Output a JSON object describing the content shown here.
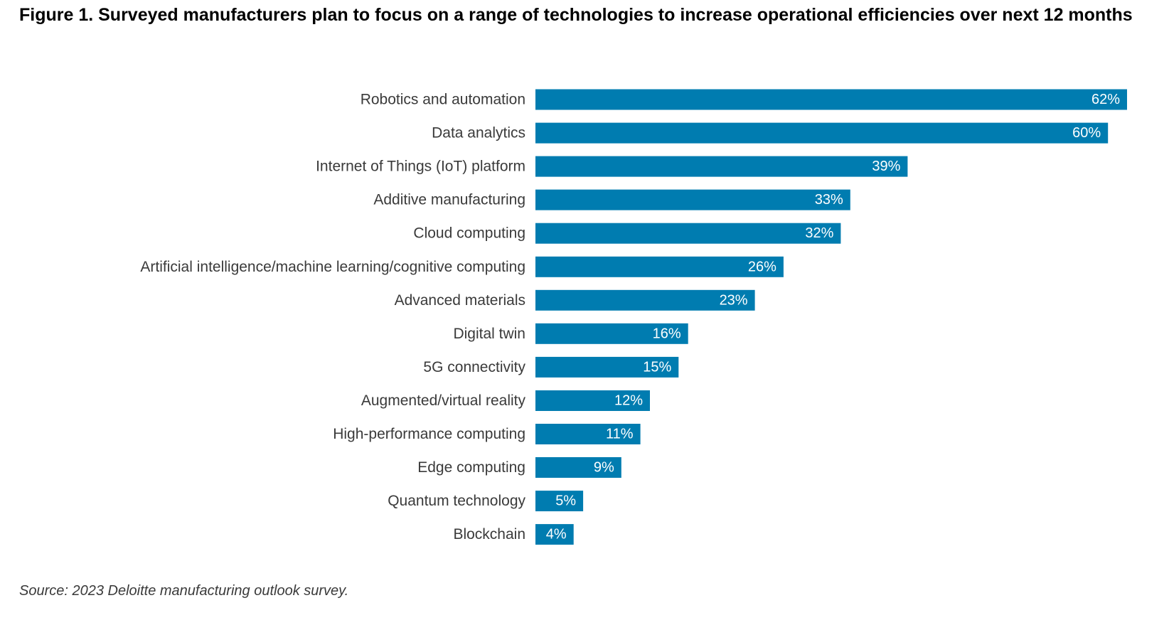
{
  "title": "Figure 1. Surveyed manufacturers plan to focus on a range of technologies to increase operational efficiencies over next 12 months",
  "source": "Source: 2023 Deloitte manufacturing outlook survey.",
  "colors": {
    "bar": "#007cb0",
    "label_text": "#3a3a3a",
    "value_text": "#ffffff"
  },
  "chart_data": {
    "type": "bar",
    "orientation": "horizontal",
    "title": "Figure 1. Surveyed manufacturers plan to focus on a range of technologies to increase operational efficiencies over next 12 months",
    "xlabel": "",
    "ylabel": "",
    "xlim": [
      0,
      62
    ],
    "grid": false,
    "legend": "none",
    "categories": [
      "Robotics and automation",
      "Data analytics",
      "Internet of Things (IoT) platform",
      "Additive manufacturing",
      "Cloud computing",
      "Artificial intelligence/machine learning/cognitive computing",
      "Advanced materials",
      "Digital twin",
      "5G connectivity",
      "Augmented/virtual reality",
      "High-performance computing",
      "Edge computing",
      "Quantum technology",
      "Blockchain"
    ],
    "values": [
      62,
      60,
      39,
      33,
      32,
      26,
      23,
      16,
      15,
      12,
      11,
      9,
      5,
      4
    ],
    "value_labels": [
      "62%",
      "60%",
      "39%",
      "33%",
      "32%",
      "26%",
      "23%",
      "16%",
      "15%",
      "12%",
      "11%",
      "9%",
      "5%",
      "4%"
    ]
  }
}
